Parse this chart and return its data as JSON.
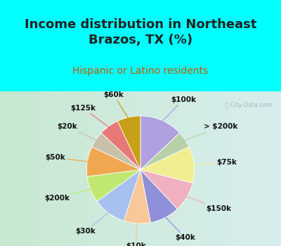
{
  "title": "Income distribution in Northeast\nBrazos, TX (%)",
  "subtitle": "Hispanic or Latino residents",
  "watermark": "ⓘ City-Data.com",
  "labels": [
    "$100k",
    "> $200k",
    "$75k",
    "$150k",
    "$40k",
    "$10k",
    "$30k",
    "$200k",
    "$50k",
    "$20k",
    "$125k",
    "$60k"
  ],
  "values": [
    13,
    5,
    11,
    9,
    9,
    8,
    10,
    8,
    9,
    5,
    6,
    7
  ],
  "colors": [
    "#b0a0e0",
    "#b8d0a8",
    "#f0ee90",
    "#f0b0c0",
    "#9090d8",
    "#f8c898",
    "#a8c0f0",
    "#c0e870",
    "#f0a850",
    "#c8c0a8",
    "#e87878",
    "#c8a018"
  ],
  "bg_color_top": "#00ffff",
  "bg_color_chart_left": "#c8e8d0",
  "bg_color_chart_right": "#d0eef0",
  "title_color": "#222222",
  "subtitle_color": "#cc5500",
  "title_fontsize": 13,
  "subtitle_fontsize": 10,
  "label_fontsize": 7.5,
  "label_color": "#111111"
}
